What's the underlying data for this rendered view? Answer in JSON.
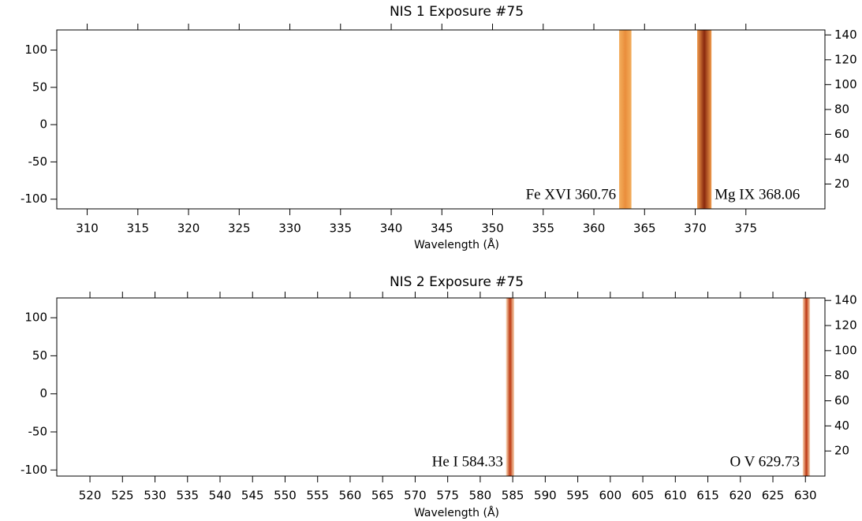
{
  "chart_data": [
    {
      "type": "spectral-image",
      "title": "NIS 1 Exposure #75",
      "x_label": "Wavelength (Å)",
      "xlim": [
        307,
        382.8
      ],
      "xticks": [
        310,
        315,
        320,
        325,
        330,
        335,
        340,
        345,
        350,
        355,
        360,
        365,
        370,
        375
      ],
      "ylim": [
        -113,
        127
      ],
      "yticks": [
        -100,
        -50,
        0,
        50,
        100
      ],
      "y2lim": [
        0,
        144
      ],
      "y2ticks": [
        20,
        40,
        60,
        80,
        100,
        120,
        140
      ],
      "bands": [
        {
          "label": "Fe XVI 360.76",
          "xrange": [
            362.5,
            363.7
          ],
          "color": "#f0a24e"
        },
        {
          "label": "Mg IX 368.06",
          "xrange": [
            370.2,
            371.6
          ],
          "color": "#e27a2c"
        }
      ]
    },
    {
      "type": "spectral-image",
      "title": "NIS 2 Exposure #75",
      "x_label": "Wavelength (Å)",
      "xlim": [
        514.9,
        633
      ],
      "xticks": [
        520,
        525,
        530,
        535,
        540,
        545,
        550,
        555,
        560,
        565,
        570,
        575,
        580,
        585,
        590,
        595,
        600,
        605,
        610,
        615,
        620,
        625,
        630
      ],
      "ylim": [
        -108,
        126
      ],
      "yticks": [
        -100,
        -50,
        0,
        50,
        100
      ],
      "y2lim": [
        0,
        142
      ],
      "y2ticks": [
        20,
        40,
        60,
        80,
        100,
        120,
        140
      ],
      "bands": [
        {
          "label": "He I 584.33",
          "xrange": [
            584.0,
            585.2
          ],
          "color": "#d9622a"
        },
        {
          "label": "O V 629.73",
          "xrange": [
            629.6,
            630.7
          ],
          "color": "#d9622a"
        }
      ]
    }
  ]
}
